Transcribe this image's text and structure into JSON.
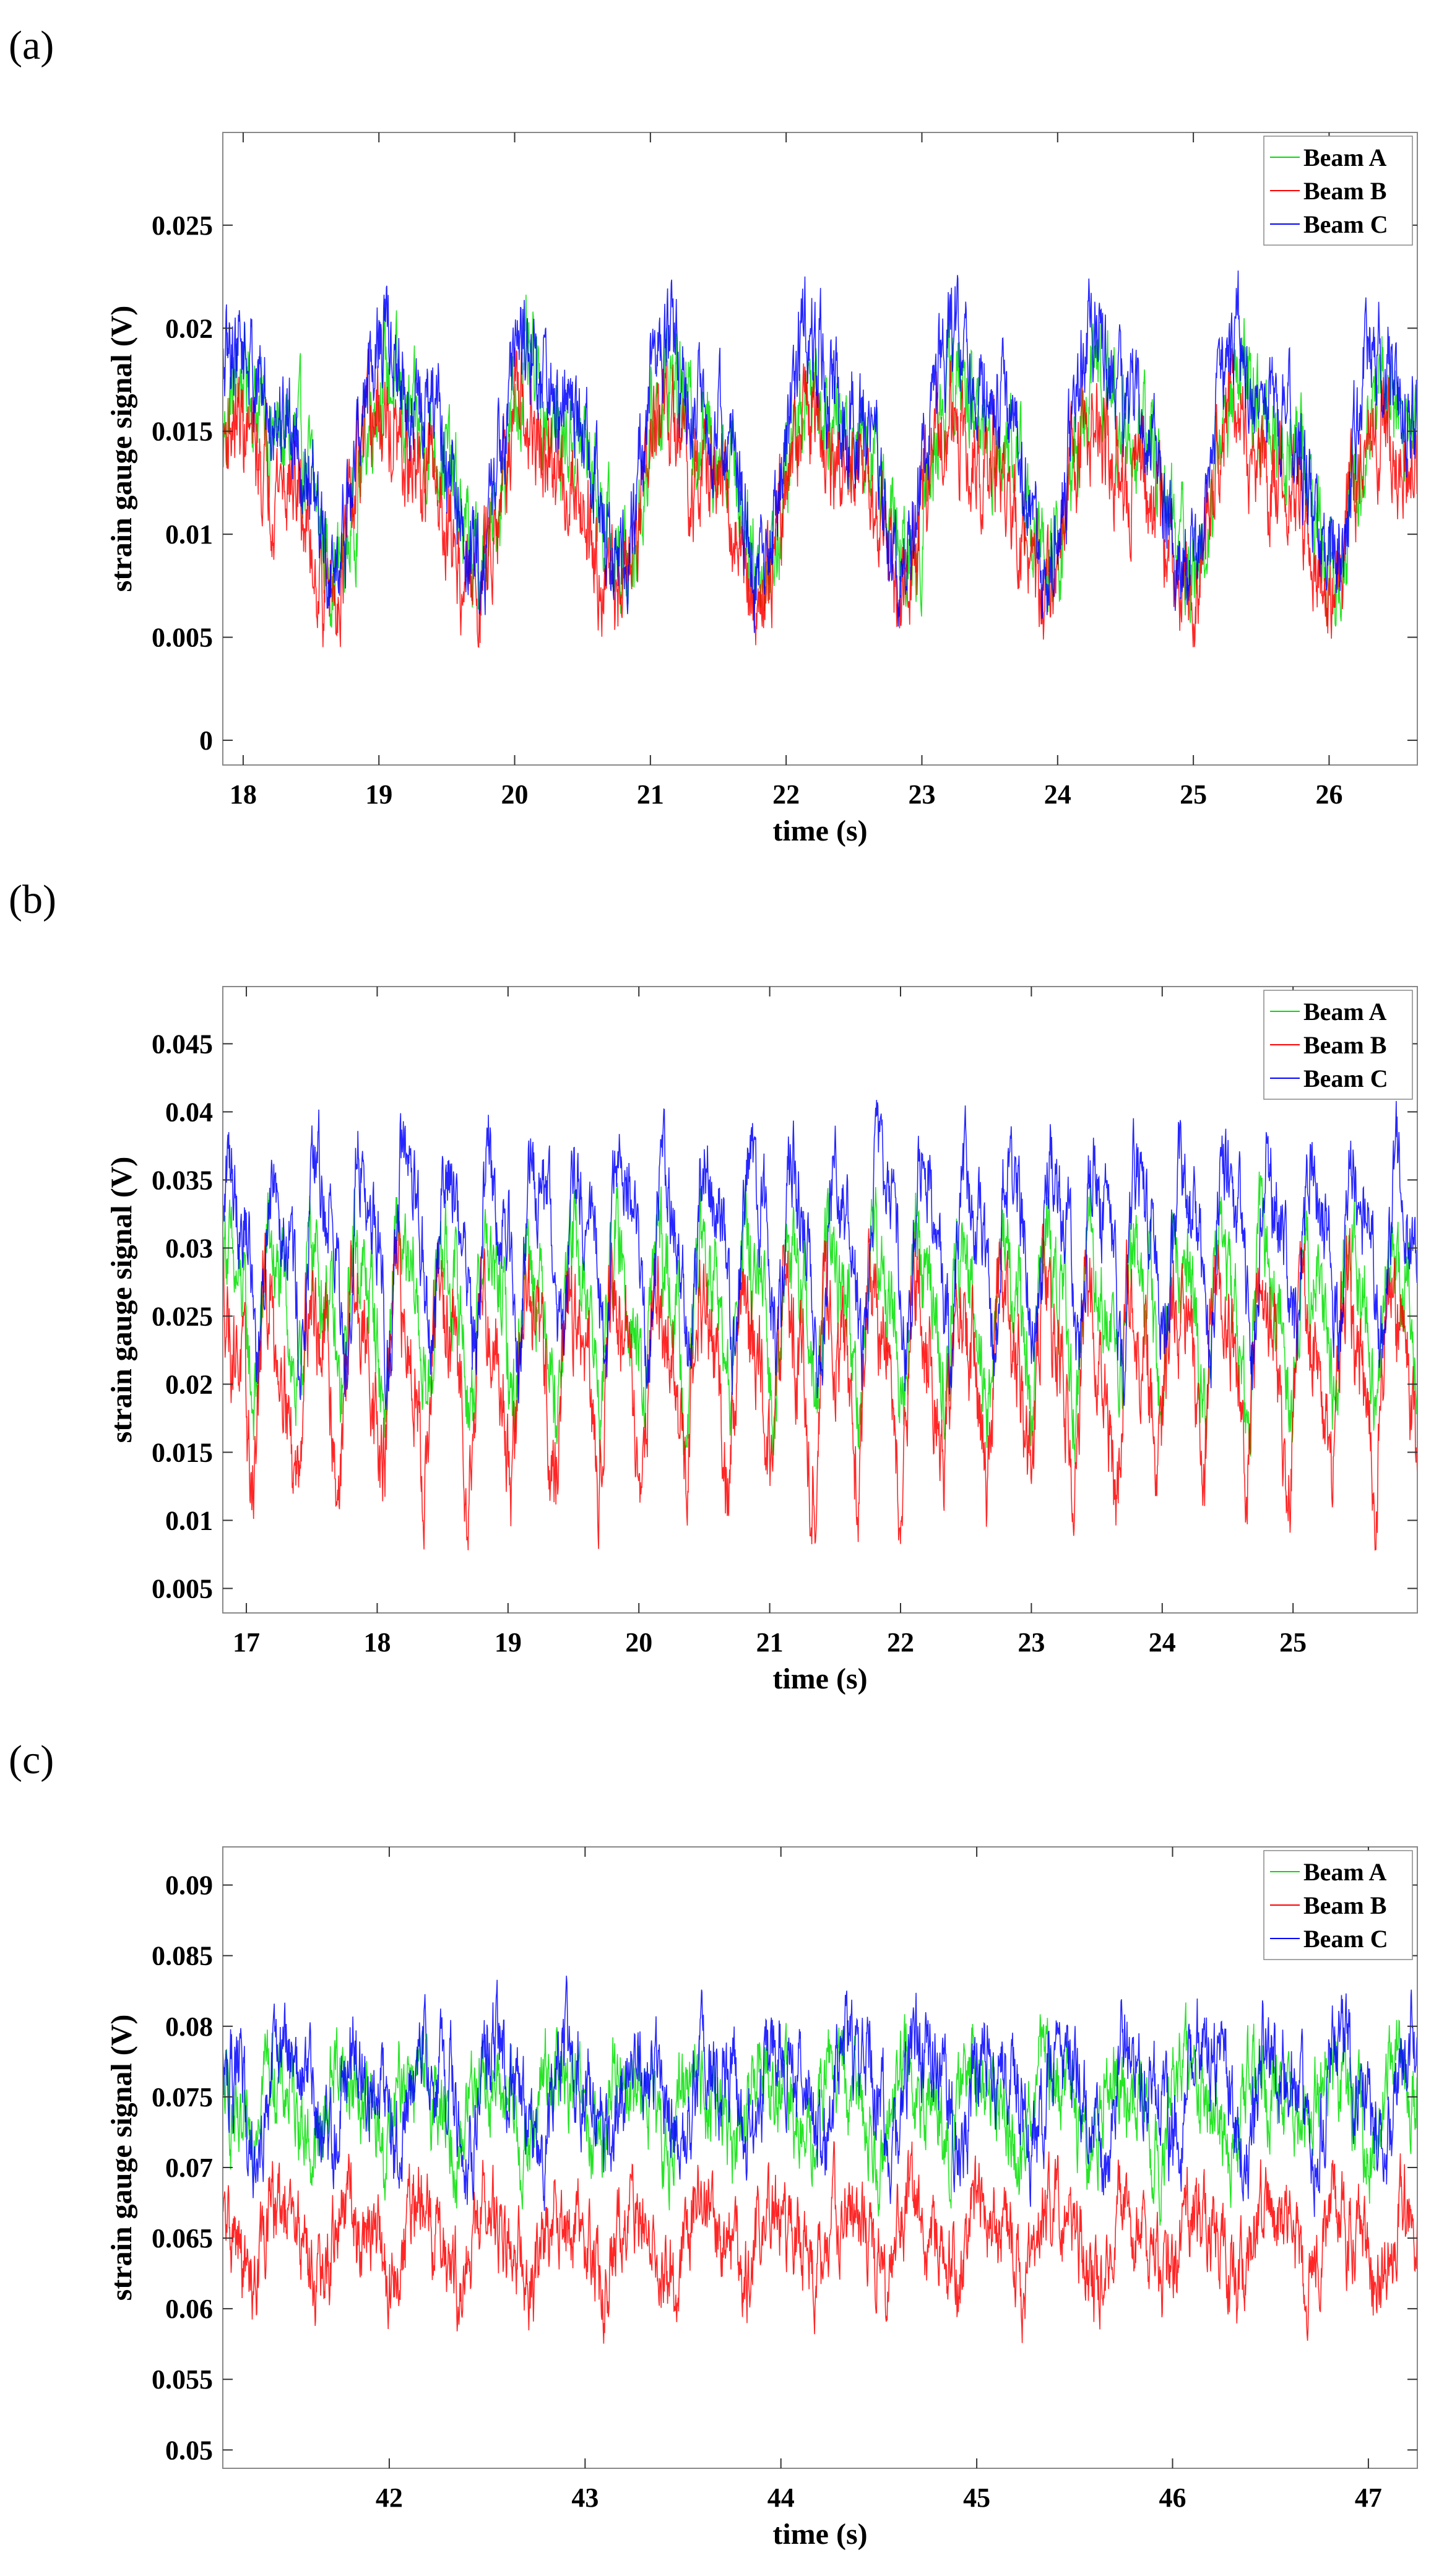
{
  "panels": [
    {
      "label": "(a)"
    },
    {
      "label": "(b)"
    },
    {
      "label": "(c)"
    }
  ],
  "chart_data": [
    {
      "type": "line",
      "panel": "(a)",
      "xlabel": "time (s)",
      "ylabel": "strain gauge signal (V)",
      "xlim": [
        17.85,
        26.65
      ],
      "ylim": [
        -0.0012,
        0.0295
      ],
      "xticks": [
        18,
        19,
        20,
        21,
        22,
        23,
        24,
        25,
        26
      ],
      "xtick_labels": [
        "18",
        "19",
        "20",
        "21",
        "22",
        "23",
        "24",
        "25",
        "26"
      ],
      "yticks": [
        0,
        0.005,
        0.01,
        0.015,
        0.02,
        0.025
      ],
      "ytick_labels": [
        "0",
        "0.005",
        "0.01",
        "0.015",
        "0.02",
        "0.025"
      ],
      "grid": false,
      "legend_position": "top-right",
      "series": [
        {
          "name": "Beam A",
          "color": "#00e000",
          "mean": 0.0135,
          "amp": 0.005,
          "noise": 0.0018,
          "phase": 0.0,
          "min": 0.0055,
          "max": 0.0235
        },
        {
          "name": "Beam B",
          "color": "#ff0000",
          "mean": 0.0118,
          "amp": 0.0045,
          "noise": 0.0018,
          "phase": 0.05,
          "min": 0.0045,
          "max": 0.0215
        },
        {
          "name": "Beam C",
          "color": "#0000ff",
          "mean": 0.0145,
          "amp": 0.006,
          "noise": 0.0018,
          "phase": 0.03,
          "min": 0.004,
          "max": 0.0252
        }
      ],
      "period": 1.05
    },
    {
      "type": "line",
      "panel": "(b)",
      "xlabel": "time (s)",
      "ylabel": "strain gauge signal (V)",
      "xlim": [
        16.82,
        25.95
      ],
      "ylim": [
        0.0032,
        0.0492
      ],
      "xticks": [
        17,
        18,
        19,
        20,
        21,
        22,
        23,
        24,
        25
      ],
      "xtick_labels": [
        "17",
        "18",
        "19",
        "20",
        "21",
        "22",
        "23",
        "24",
        "25"
      ],
      "yticks": [
        0.005,
        0.01,
        0.015,
        0.02,
        0.025,
        0.03,
        0.035,
        0.04,
        0.045
      ],
      "ytick_labels": [
        "0.005",
        "0.01",
        "0.015",
        "0.02",
        "0.025",
        "0.03",
        "0.035",
        "0.04",
        "0.045"
      ],
      "grid": false,
      "legend_position": "top-right",
      "series": [
        {
          "name": "Beam A",
          "color": "#00e000",
          "mean": 0.0255,
          "amp": 0.0065,
          "noise": 0.0025,
          "phase": 0.1,
          "min": 0.014,
          "max": 0.04
        },
        {
          "name": "Beam B",
          "color": "#ff0000",
          "mean": 0.021,
          "amp": 0.0075,
          "noise": 0.0028,
          "phase": 0.15,
          "min": 0.0078,
          "max": 0.033
        },
        {
          "name": "Beam C",
          "color": "#0000ff",
          "mean": 0.0305,
          "amp": 0.0075,
          "noise": 0.0025,
          "phase": 0.0,
          "min": 0.018,
          "max": 0.045
        }
      ],
      "period": 0.33
    },
    {
      "type": "line",
      "panel": "(c)",
      "xlabel": "time (s)",
      "ylabel": "strain gauge signal (V)",
      "xlim": [
        41.15,
        47.25
      ],
      "ylim": [
        0.0487,
        0.0927
      ],
      "xticks": [
        42,
        43,
        44,
        45,
        46,
        47
      ],
      "xtick_labels": [
        "42",
        "43",
        "44",
        "45",
        "46",
        "47"
      ],
      "yticks": [
        0.05,
        0.055,
        0.06,
        0.065,
        0.07,
        0.075,
        0.08,
        0.085,
        0.09
      ],
      "ytick_labels": [
        "0.05",
        "0.055",
        "0.06",
        "0.065",
        "0.07",
        "0.075",
        "0.08",
        "0.085",
        "0.09"
      ],
      "grid": false,
      "legend_position": "top-right",
      "series": [
        {
          "name": "Beam A",
          "color": "#00e000",
          "mean": 0.0745,
          "amp": 0.0035,
          "noise": 0.0022,
          "phase": 0.2,
          "min": 0.0635,
          "max": 0.0845
        },
        {
          "name": "Beam B",
          "color": "#ff0000",
          "mean": 0.0648,
          "amp": 0.003,
          "noise": 0.0022,
          "phase": 0.1,
          "min": 0.0532,
          "max": 0.0775
        },
        {
          "name": "Beam C",
          "color": "#0000ff",
          "mean": 0.0755,
          "amp": 0.004,
          "noise": 0.0024,
          "phase": 0.0,
          "min": 0.064,
          "max": 0.0908
        }
      ],
      "period": 0.36
    }
  ]
}
